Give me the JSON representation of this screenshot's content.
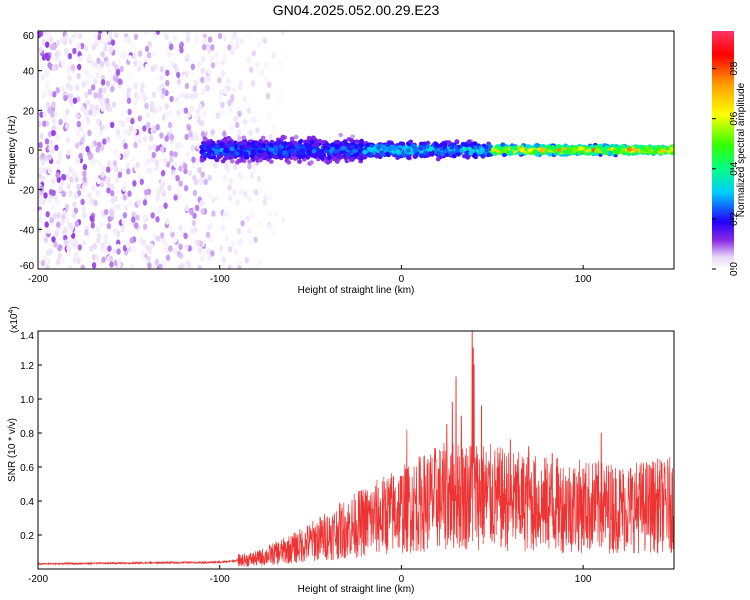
{
  "title": "GN04.2025.052.00.29.E23",
  "chart_data": [
    {
      "type": "heatmap",
      "xlabel": "Height of straight line (km)",
      "ylabel": "Frequency (Hz)",
      "xlim": [
        -200,
        150
      ],
      "ylim": [
        -60,
        60
      ],
      "x_ticks": [
        "-200",
        "-100",
        "0",
        "100"
      ],
      "y_ticks": [
        "-60",
        "-40",
        "-20",
        "0",
        "20",
        "40",
        "60"
      ],
      "colorbar": {
        "label": "Normalized spectral amplitude",
        "range": [
          0.0,
          0.95
        ],
        "ticks": [
          "0.0",
          "0.2",
          "0.4",
          "0.6",
          "0.8"
        ]
      },
      "features": [
        {
          "x_range": [
            -200,
            -65
          ],
          "freq_range": [
            -60,
            60
          ],
          "amplitude": 0.05,
          "description": "broadband noise"
        },
        {
          "x_range": [
            -110,
            -20
          ],
          "freq_center": 0,
          "freq_halfwidth": 8,
          "amplitude": 0.3
        },
        {
          "x_range": [
            -20,
            50
          ],
          "freq_center": 0,
          "freq_halfwidth": 5,
          "amplitude": 0.4
        },
        {
          "x_range": [
            50,
            150
          ],
          "freq_center": 0,
          "freq_halfwidth": 3,
          "amplitude": 0.8
        }
      ]
    },
    {
      "type": "line",
      "xlabel": "Height of straight line (km)",
      "ylabel": "SNR (10 * v/v)",
      "scale_label": "(x10",
      "scale_exp": "4",
      "xlim": [
        -200,
        150
      ],
      "ylim": [
        0,
        1.4
      ],
      "x_ticks": [
        "-200",
        "-100",
        "0",
        "100"
      ],
      "y_ticks": [
        "0.2",
        "0.4",
        "0.6",
        "0.8",
        "1.0",
        "1.2",
        "1.4"
      ],
      "color": "#ee3333",
      "series": [
        {
          "envelope": [
            {
              "x": -200,
              "y": 0.03
            },
            {
              "x": -100,
              "y": 0.04
            },
            {
              "x": -80,
              "y": 0.06
            },
            {
              "x": -60,
              "y": 0.12
            },
            {
              "x": -40,
              "y": 0.2
            },
            {
              "x": -20,
              "y": 0.28
            },
            {
              "x": 0,
              "y": 0.35
            },
            {
              "x": 20,
              "y": 0.42
            },
            {
              "x": 40,
              "y": 0.44
            },
            {
              "x": 60,
              "y": 0.4
            },
            {
              "x": 80,
              "y": 0.38
            },
            {
              "x": 100,
              "y": 0.37
            },
            {
              "x": 120,
              "y": 0.36
            },
            {
              "x": 150,
              "y": 0.38
            }
          ],
          "peaks": [
            {
              "x": 39,
              "y": 1.4
            },
            {
              "x": 39.5,
              "y": 1.3
            },
            {
              "x": 40,
              "y": 1.2
            },
            {
              "x": 30,
              "y": 1.13
            },
            {
              "x": 28,
              "y": 0.98
            },
            {
              "x": 44,
              "y": 0.96
            },
            {
              "x": 33,
              "y": 0.9
            },
            {
              "x": 25,
              "y": 0.85
            },
            {
              "x": 3,
              "y": 0.82
            },
            {
              "x": 60,
              "y": 0.76
            },
            {
              "x": 70,
              "y": 0.72
            },
            {
              "x": 110,
              "y": 0.8
            },
            {
              "x": 83,
              "y": 0.68
            },
            {
              "x": 145,
              "y": 0.6
            }
          ]
        }
      ]
    }
  ]
}
